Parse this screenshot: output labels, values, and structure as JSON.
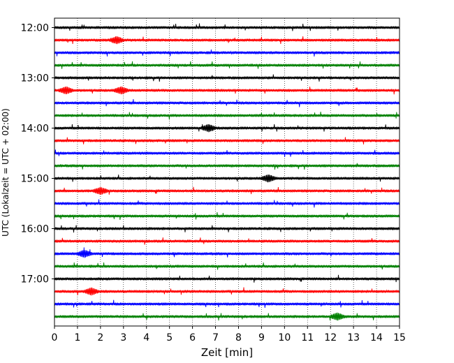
{
  "chart_data": {
    "type": "line",
    "title": "",
    "xlabel": "Zeit  [min]",
    "ylabel": "UTC (Lokalzeit = UTC + 02:00)",
    "xlim": [
      0,
      15
    ],
    "xticks": [
      0,
      1,
      2,
      3,
      4,
      5,
      6,
      7,
      8,
      9,
      10,
      11,
      12,
      13,
      14,
      15
    ],
    "y_tick_labels": [
      "12:00",
      "13:00",
      "14:00",
      "15:00",
      "16:00",
      "17:00"
    ],
    "trace_start_times": [
      "12:00",
      "12:15",
      "12:30",
      "12:45",
      "13:00",
      "13:15",
      "13:30",
      "13:45",
      "14:00",
      "14:15",
      "14:30",
      "14:45",
      "15:00",
      "15:15",
      "15:30",
      "15:45",
      "16:00",
      "16:15",
      "16:30",
      "16:45",
      "17:00",
      "17:15",
      "17:30",
      "17:45"
    ],
    "trace_colors": [
      "#000000",
      "#ff0000",
      "#0000ff",
      "#008000"
    ],
    "vertical_grid": "dotted",
    "legend": "none",
    "notable_events": [
      {
        "start": "12:15",
        "minute": 2.7
      },
      {
        "start": "13:15",
        "minute": 0.5
      },
      {
        "start": "13:15",
        "minute": 2.9
      },
      {
        "start": "14:00",
        "minute": 6.7
      },
      {
        "start": "15:00",
        "minute": 9.3
      },
      {
        "start": "15:15",
        "minute": 2.0
      },
      {
        "start": "16:30",
        "minute": 1.3
      },
      {
        "start": "17:15",
        "minute": 1.6
      },
      {
        "start": "17:45",
        "minute": 12.3
      }
    ]
  }
}
